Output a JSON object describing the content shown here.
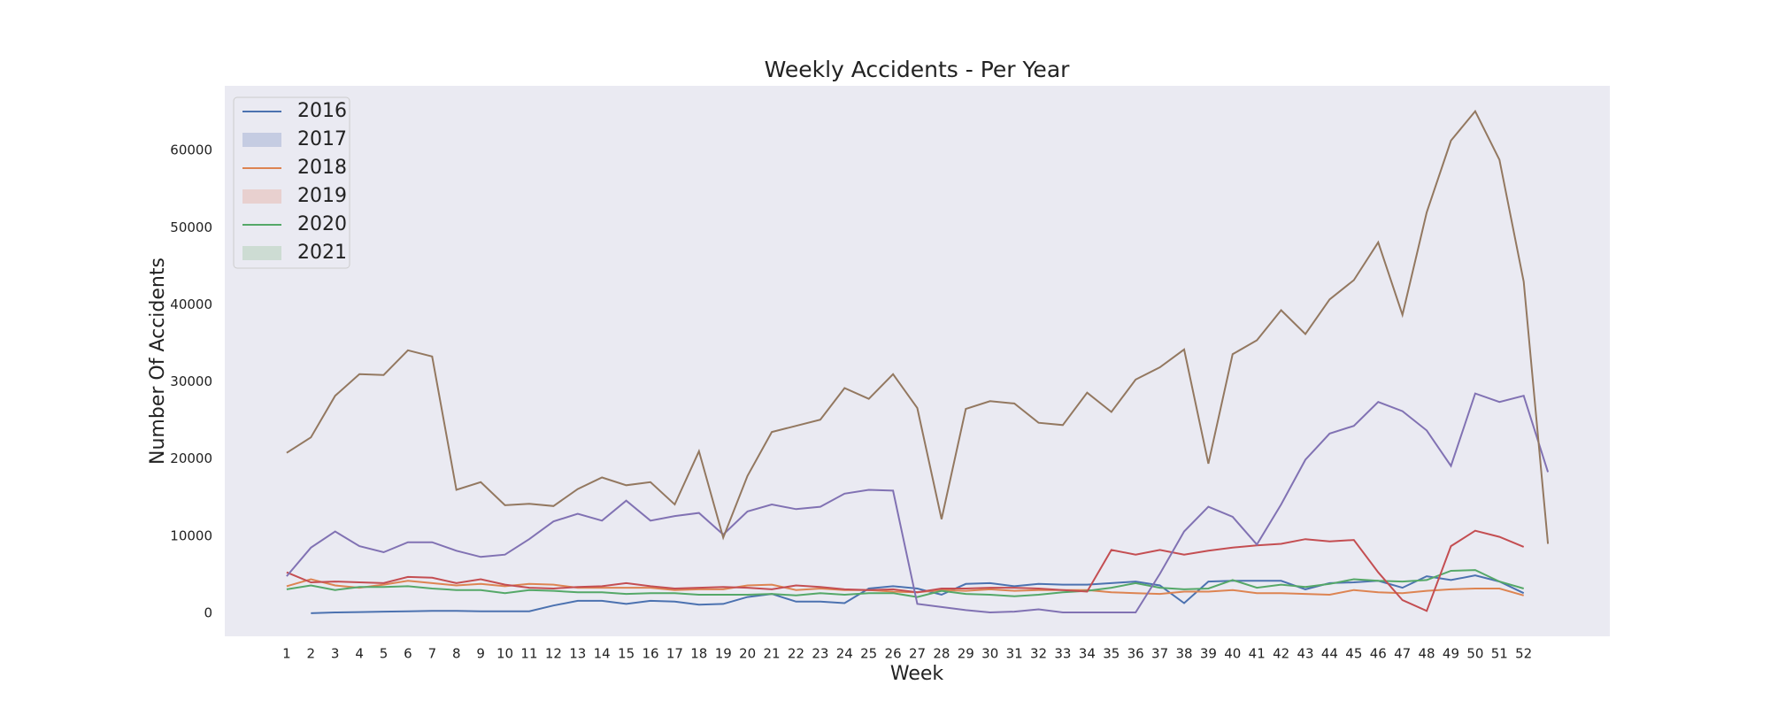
{
  "chart_data": {
    "type": "line",
    "title": "Weekly Accidents - Per Year",
    "x_label": "Week",
    "y_label": "Number Of Accidents",
    "x": [
      1,
      2,
      3,
      4,
      5,
      6,
      7,
      8,
      9,
      10,
      11,
      12,
      13,
      14,
      15,
      16,
      17,
      18,
      19,
      20,
      21,
      22,
      23,
      24,
      25,
      26,
      27,
      28,
      29,
      30,
      31,
      32,
      33,
      34,
      35,
      36,
      37,
      38,
      39,
      40,
      41,
      42,
      43,
      44,
      45,
      46,
      47,
      48,
      49,
      50,
      51,
      52,
      53
    ],
    "xlim": [
      -1.55,
      55.55
    ],
    "xticks": [
      1,
      2,
      3,
      4,
      5,
      6,
      7,
      8,
      9,
      10,
      11,
      12,
      13,
      14,
      15,
      16,
      17,
      18,
      19,
      20,
      21,
      22,
      23,
      24,
      25,
      26,
      27,
      28,
      29,
      30,
      31,
      32,
      33,
      34,
      35,
      36,
      37,
      38,
      39,
      40,
      41,
      42,
      43,
      44,
      45,
      46,
      47,
      48,
      49,
      50,
      51,
      52
    ],
    "ylim": [
      -3000,
      68400
    ],
    "yticks": [
      0,
      10000,
      20000,
      30000,
      40000,
      50000,
      60000
    ],
    "grid": false,
    "legend": "upper left",
    "series": [
      {
        "name": "2016",
        "color": "#4c72b0",
        "legend_color": "#4c72b0",
        "legend_style": "line",
        "values": [
          null,
          0,
          100,
          150,
          200,
          250,
          300,
          300,
          250,
          250,
          250,
          1000,
          1600,
          1600,
          1200,
          1600,
          1500,
          1100,
          1200,
          2100,
          2500,
          1500,
          1500,
          1300,
          3200,
          3500,
          3200,
          2400,
          3800,
          3900,
          3500,
          3800,
          3700,
          3700,
          3900,
          4100,
          3600,
          1300,
          4100,
          4200,
          4200,
          4200,
          3100,
          3900,
          4000,
          4200,
          3300,
          4800,
          4300,
          4900,
          4100,
          2600,
          null
        ]
      },
      {
        "name": "2017",
        "color": "#dd8452",
        "legend_color": "#c5cce2",
        "legend_style": "patch",
        "values": [
          3500,
          4400,
          3600,
          3300,
          3700,
          4200,
          3900,
          3600,
          3800,
          3500,
          3800,
          3700,
          3300,
          3300,
          3300,
          3300,
          3000,
          3100,
          3100,
          3600,
          3700,
          3000,
          3200,
          3000,
          3000,
          2800,
          2700,
          3000,
          2900,
          3100,
          2900,
          3000,
          3000,
          3000,
          2700,
          2600,
          2500,
          2800,
          2800,
          3000,
          2600,
          2600,
          2500,
          2400,
          3000,
          2700,
          2600,
          2900,
          3100,
          3200,
          3200,
          2300,
          null
        ]
      },
      {
        "name": "2018",
        "color": "#55a868",
        "legend_color": "#dd8452",
        "legend_style": "line",
        "values": [
          3100,
          3600,
          3000,
          3400,
          3400,
          3500,
          3200,
          3000,
          3000,
          2600,
          3000,
          2900,
          2700,
          2700,
          2500,
          2600,
          2600,
          2400,
          2400,
          2400,
          2500,
          2300,
          2600,
          2400,
          2600,
          2600,
          2100,
          2900,
          2500,
          2400,
          2200,
          2400,
          2700,
          2900,
          3300,
          3900,
          3300,
          3100,
          3200,
          4300,
          3300,
          3700,
          3400,
          3800,
          4400,
          4200,
          4100,
          4300,
          5500,
          5600,
          4100,
          3200,
          null
        ]
      },
      {
        "name": "2019",
        "color": "#c44e52",
        "legend_color": "#e8d0cf",
        "legend_style": "patch",
        "values": [
          5300,
          4000,
          4100,
          4000,
          3900,
          4700,
          4600,
          3900,
          4400,
          3700,
          3300,
          3200,
          3400,
          3500,
          3900,
          3500,
          3200,
          3300,
          3400,
          3300,
          3100,
          3600,
          3400,
          3100,
          3000,
          3100,
          2700,
          3200,
          3200,
          3300,
          3300,
          3200,
          3000,
          2800,
          8200,
          7600,
          8200,
          7600,
          8100,
          8500,
          8800,
          9000,
          9600,
          9300,
          9500,
          5300,
          1700,
          300,
          8700,
          10700,
          9900,
          8600,
          null
        ]
      },
      {
        "name": "2020",
        "color": "#8172b3",
        "legend_color": "#55a868",
        "legend_style": "line",
        "values": [
          4800,
          8500,
          10600,
          8700,
          7900,
          9200,
          9200,
          8100,
          7300,
          7600,
          9600,
          11900,
          12900,
          12000,
          14600,
          12000,
          12600,
          13000,
          10200,
          13200,
          14100,
          13500,
          13800,
          15500,
          16000,
          15900,
          1200,
          800,
          400,
          100,
          200,
          500,
          100,
          100,
          100,
          100,
          5100,
          10600,
          13800,
          12500,
          8900,
          14100,
          19900,
          23300,
          24300,
          27400,
          26200,
          23700,
          19100,
          28500,
          27400,
          28200,
          18300
        ]
      },
      {
        "name": "2021",
        "color": "#937860",
        "legend_color": "#cddcd3",
        "legend_style": "patch",
        "values": [
          20800,
          22800,
          28200,
          31000,
          30900,
          34100,
          33300,
          16000,
          17000,
          14000,
          14200,
          13900,
          16100,
          17600,
          16600,
          17000,
          14100,
          21000,
          9800,
          17800,
          23500,
          24300,
          25100,
          29200,
          27800,
          31000,
          26600,
          12200,
          26500,
          27500,
          27200,
          24700,
          24400,
          28600,
          26100,
          30300,
          31900,
          34200,
          19400,
          33600,
          35400,
          39300,
          36200,
          40700,
          43200,
          48100,
          38700,
          52000,
          61300,
          65100,
          58800,
          43000,
          9000
        ]
      }
    ]
  }
}
